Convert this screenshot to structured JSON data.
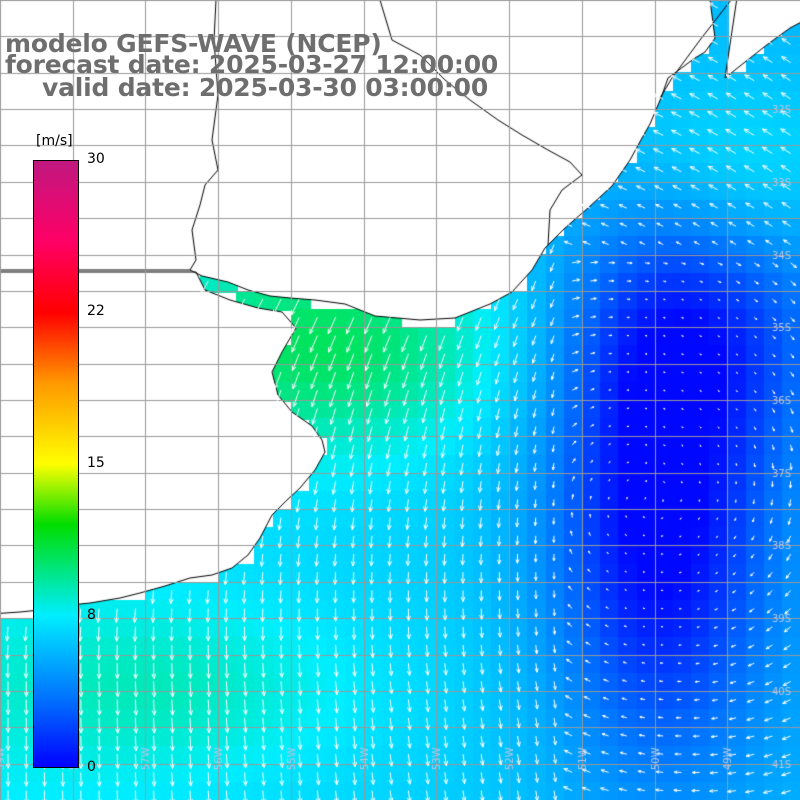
{
  "title": {
    "line1": "modelo GEFS-WAVE (NCEP)",
    "line2": "forecast date: 2025-03-27 12:00:00",
    "line3": "valid date: 2025-03-30 03:00:00"
  },
  "colorbar": {
    "units": "[m/s]",
    "min": 0,
    "max": 30,
    "ticks": [
      {
        "value": 30,
        "label": "30"
      },
      {
        "value": 22.5,
        "label": "22"
      },
      {
        "value": 15,
        "label": "15"
      },
      {
        "value": 7.5,
        "label": "8"
      },
      {
        "value": 0,
        "label": "0"
      }
    ],
    "color_stops": [
      {
        "value": 0,
        "color": "#0000ff"
      },
      {
        "value": 3,
        "color": "#0066ff"
      },
      {
        "value": 7.5,
        "color": "#00eeff"
      },
      {
        "value": 12,
        "color": "#00dd00"
      },
      {
        "value": 15,
        "color": "#ffff00"
      },
      {
        "value": 19,
        "color": "#ff9900"
      },
      {
        "value": 22.5,
        "color": "#ff0000"
      },
      {
        "value": 26,
        "color": "#ff0066"
      },
      {
        "value": 30,
        "color": "#c01880"
      }
    ]
  },
  "map": {
    "lon_range": [
      -59,
      -48
    ],
    "lat_range": [
      -41.5,
      -30.5
    ],
    "land_color": "#ffffff",
    "grid_color": "#999999",
    "vector_color": "#ffffff",
    "lat_labels": [
      "32S",
      "33S",
      "34S",
      "35S",
      "36S",
      "37S",
      "38S",
      "39S",
      "40S",
      "41S"
    ],
    "lon_labels": [
      "59W",
      "58W",
      "57W",
      "56W",
      "55W",
      "54W",
      "53W",
      "52W",
      "51W",
      "50W",
      "49W"
    ]
  }
}
